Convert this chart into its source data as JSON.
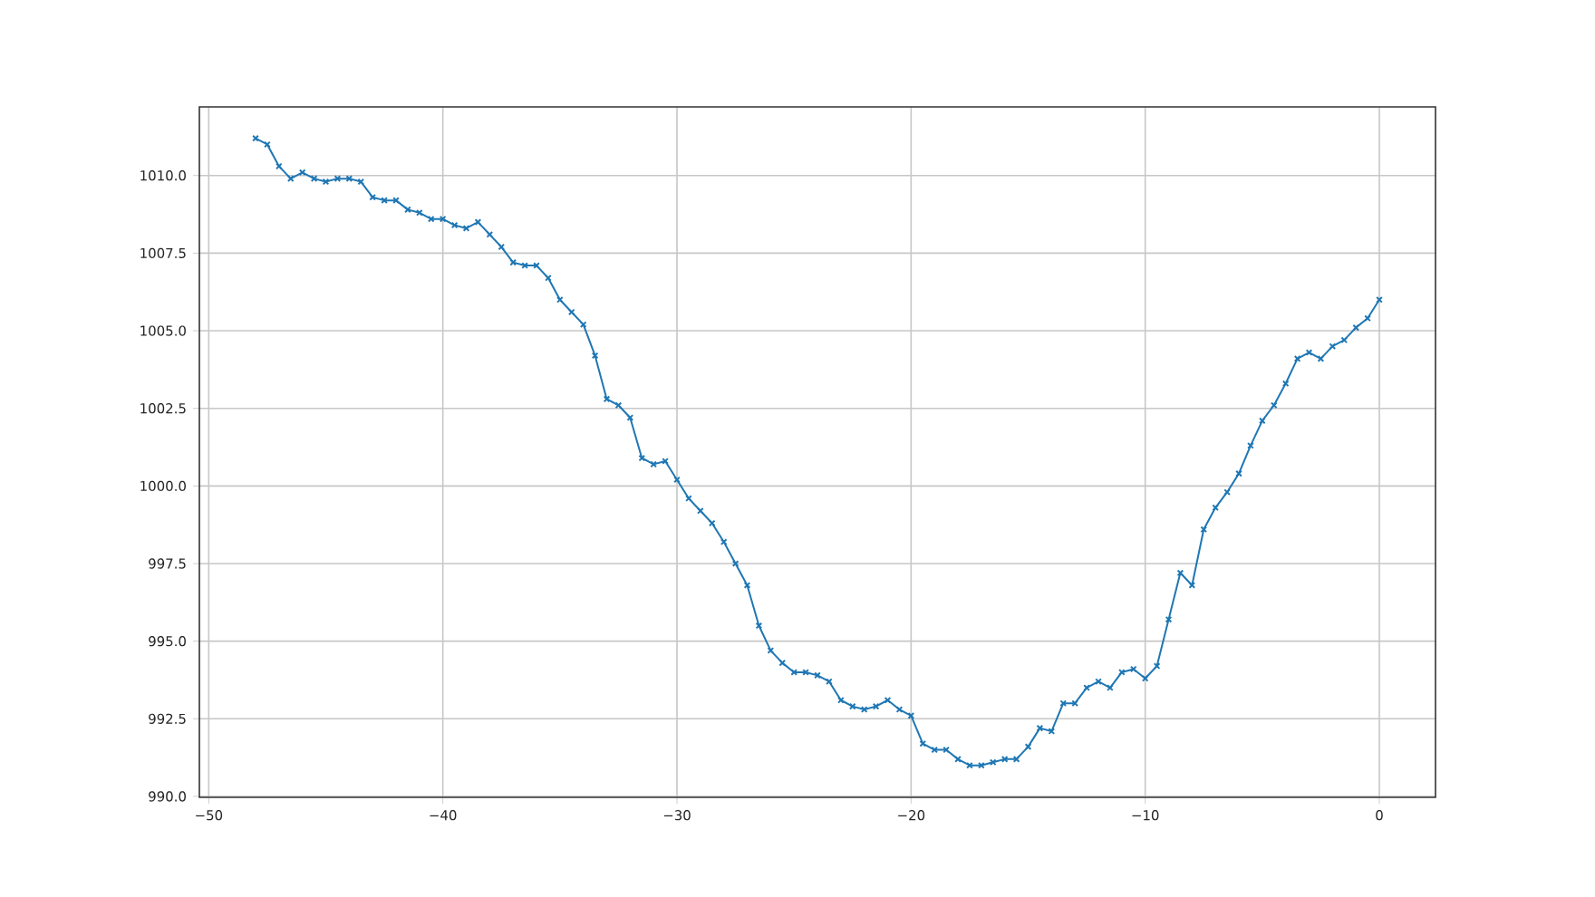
{
  "chart_data": {
    "type": "line",
    "color": "#1f77b4",
    "marker": "cross",
    "grid": true,
    "line_style": "solid",
    "x": [
      -48,
      -47.5,
      -47,
      -46.5,
      -46,
      -45.5,
      -45,
      -44.5,
      -44,
      -43.5,
      -43,
      -42.5,
      -42,
      -41.5,
      -41,
      -40.5,
      -40,
      -39.5,
      -39,
      -38.5,
      -38,
      -37.5,
      -37,
      -36.5,
      -36,
      -35.5,
      -35,
      -34.5,
      -34,
      -33.5,
      -33,
      -32.5,
      -32,
      -31.5,
      -31,
      -30.5,
      -30,
      -29.5,
      -29,
      -28.5,
      -28,
      -27.5,
      -27,
      -26.5,
      -26,
      -25.5,
      -25,
      -24.5,
      -24,
      -23.5,
      -23,
      -22.5,
      -22,
      -21.5,
      -21,
      -20.5,
      -20,
      -19.5,
      -19,
      -18.5,
      -18,
      -17.5,
      -17,
      -16.5,
      -16,
      -15.5,
      -15,
      -14.5,
      -14,
      -13.5,
      -13,
      -12.5,
      -12,
      -11.5,
      -11,
      -10.5,
      -10,
      -9.5,
      -9,
      -8.5,
      -8,
      -7.5,
      -7,
      -6.5,
      -6,
      -5.5,
      -5,
      -4.5,
      -4,
      -3.5,
      -3,
      -2.5,
      -2,
      -1.5,
      -1,
      -0.5,
      0
    ],
    "values": [
      1011.2,
      1011.0,
      1010.3,
      1009.9,
      1010.1,
      1009.9,
      1009.8,
      1009.9,
      1009.9,
      1009.8,
      1009.3,
      1009.2,
      1009.2,
      1008.9,
      1008.8,
      1008.6,
      1008.6,
      1008.4,
      1008.3,
      1008.5,
      1008.1,
      1007.7,
      1007.2,
      1007.1,
      1007.1,
      1006.7,
      1006.0,
      1005.6,
      1005.2,
      1004.2,
      1002.8,
      1002.6,
      1002.2,
      1000.9,
      1000.7,
      1000.8,
      1000.2,
      999.6,
      999.2,
      998.8,
      998.2,
      997.5,
      996.8,
      995.5,
      994.7,
      994.3,
      994.0,
      994.0,
      993.9,
      993.7,
      993.1,
      992.9,
      992.8,
      992.9,
      993.1,
      992.8,
      992.6,
      991.7,
      991.5,
      991.5,
      991.2,
      991.0,
      991.0,
      991.1,
      991.2,
      991.2,
      991.6,
      992.2,
      992.1,
      993.0,
      993.0,
      993.5,
      993.7,
      993.5,
      994.0,
      994.1,
      993.8,
      994.2,
      995.7,
      997.2,
      996.8,
      998.6,
      999.3,
      999.8,
      1000.4,
      1001.3,
      1002.1,
      1002.6,
      1003.3,
      1004.1,
      1004.3,
      1004.1,
      1004.5,
      1004.7,
      1005.1,
      1005.4,
      1006.0
    ],
    "xlim": [
      -50.4,
      2.4
    ],
    "ylim": [
      989.97,
      1012.21
    ],
    "xticks": [
      {
        "value": -50,
        "label": "−50"
      },
      {
        "value": -40,
        "label": "−40"
      },
      {
        "value": -30,
        "label": "−30"
      },
      {
        "value": -20,
        "label": "−20"
      },
      {
        "value": -10,
        "label": "−10"
      },
      0
    ],
    "yticks": [
      {
        "value": 990,
        "label": "990.0"
      },
      {
        "value": 992.5,
        "label": "992.5"
      },
      {
        "value": 995,
        "label": "995.0"
      },
      {
        "value": 997.5,
        "label": "997.5"
      },
      {
        "value": 1000,
        "label": "1000.0"
      },
      {
        "value": 1002.5,
        "label": "1002.5"
      },
      {
        "value": 1005,
        "label": "1005.0"
      },
      {
        "value": 1007.5,
        "label": "1007.5"
      },
      {
        "value": 1010,
        "label": "1010.0"
      }
    ]
  }
}
